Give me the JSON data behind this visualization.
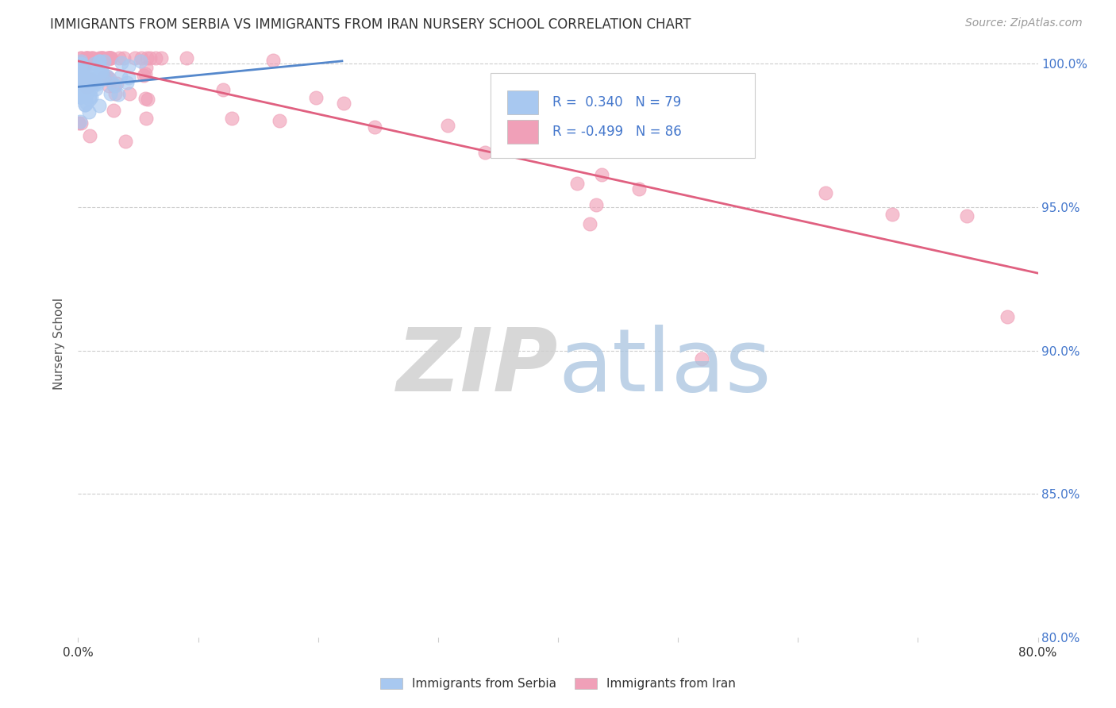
{
  "title": "IMMIGRANTS FROM SERBIA VS IMMIGRANTS FROM IRAN NURSERY SCHOOL CORRELATION CHART",
  "source": "Source: ZipAtlas.com",
  "ylabel": "Nursery School",
  "xlim": [
    0.0,
    0.8
  ],
  "ylim": [
    0.8,
    1.005
  ],
  "serbia_R": 0.34,
  "serbia_N": 79,
  "iran_R": -0.499,
  "iran_N": 86,
  "serbia_color": "#a8c8f0",
  "iran_color": "#f0a0b8",
  "serbia_line_color": "#5588cc",
  "iran_line_color": "#e06080",
  "grid_color": "#cccccc",
  "legend_serbia_label": "Immigrants from Serbia",
  "legend_iran_label": "Immigrants from Iran",
  "serbia_trendline_x": [
    0.0,
    0.22
  ],
  "serbia_trendline_y": [
    0.992,
    1.001
  ],
  "iran_trendline_x": [
    0.0,
    0.8
  ],
  "iran_trendline_y": [
    1.001,
    0.927
  ],
  "watermark_zip_color": "#d0d0d0",
  "watermark_atlas_color": "#a8c4e0",
  "title_fontsize": 12,
  "source_fontsize": 10,
  "tick_label_color_right": "#4477cc",
  "tick_label_color_bottom": "#333333"
}
